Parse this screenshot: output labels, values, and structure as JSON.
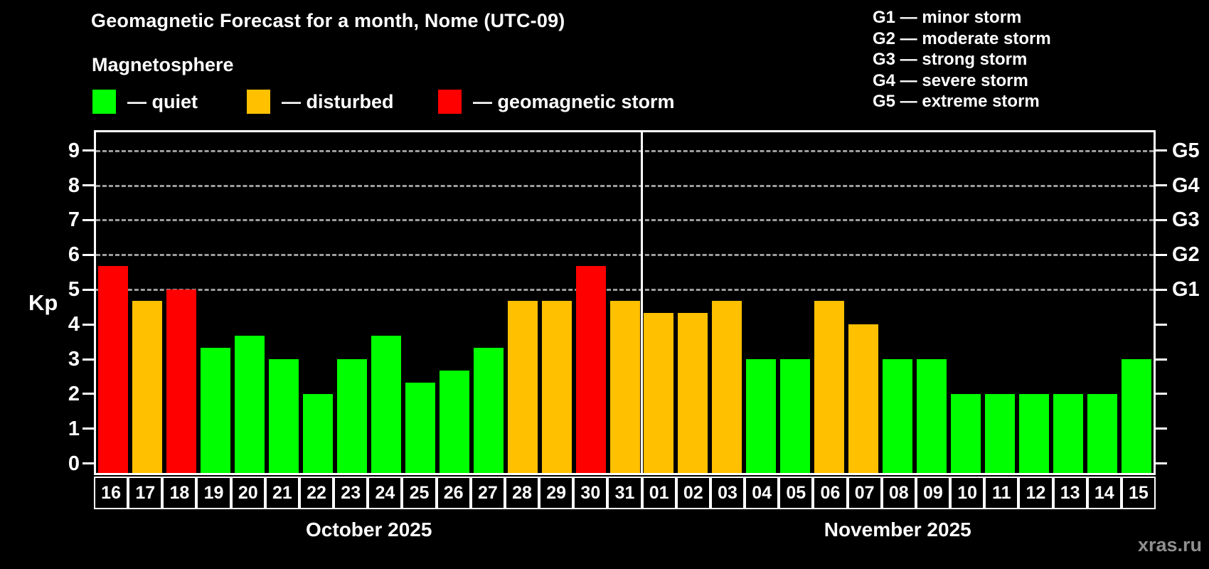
{
  "chart_data": {
    "type": "bar",
    "title": "Geomagnetic Forecast for a month, Nome (UTC-09)",
    "subtitle": "Magnetosphere",
    "ylabel": "Kp",
    "ylim": [
      0,
      9
    ],
    "y_ticks": [
      0,
      1,
      2,
      3,
      4,
      5,
      6,
      7,
      8,
      9
    ],
    "gridlines_at": [
      5,
      6,
      7,
      8,
      9
    ],
    "grid": "dashed horizontal at Kp 5-9",
    "legend_position": "top-left",
    "legend": [
      {
        "label": "— quiet",
        "status": "quiet",
        "color": "#00ff00"
      },
      {
        "label": "— disturbed",
        "status": "disturbed",
        "color": "#ffc000"
      },
      {
        "label": "— geomagnetic storm",
        "status": "storm",
        "color": "#ff0000"
      }
    ],
    "g_scale": [
      "G1 — minor storm",
      "G2 — moderate storm",
      "G3 — strong storm",
      "G4 — severe storm",
      "G5 — extreme storm"
    ],
    "right_axis_labels": [
      {
        "kp": 5,
        "label": "G1"
      },
      {
        "kp": 6,
        "label": "G2"
      },
      {
        "kp": 7,
        "label": "G3"
      },
      {
        "kp": 8,
        "label": "G4"
      },
      {
        "kp": 9,
        "label": "G5"
      }
    ],
    "status_colors": {
      "quiet": "#00ff00",
      "disturbed": "#ffc000",
      "storm": "#ff0000"
    },
    "months": [
      {
        "label": "October 2025",
        "bars": [
          {
            "day": "16",
            "kp": 5.67,
            "status": "storm"
          },
          {
            "day": "17",
            "kp": 4.67,
            "status": "disturbed"
          },
          {
            "day": "18",
            "kp": 5.0,
            "status": "storm"
          },
          {
            "day": "19",
            "kp": 3.33,
            "status": "quiet"
          },
          {
            "day": "20",
            "kp": 3.67,
            "status": "quiet"
          },
          {
            "day": "21",
            "kp": 3.0,
            "status": "quiet"
          },
          {
            "day": "22",
            "kp": 2.0,
            "status": "quiet"
          },
          {
            "day": "23",
            "kp": 3.0,
            "status": "quiet"
          },
          {
            "day": "24",
            "kp": 3.67,
            "status": "quiet"
          },
          {
            "day": "25",
            "kp": 2.33,
            "status": "quiet"
          },
          {
            "day": "26",
            "kp": 2.67,
            "status": "quiet"
          },
          {
            "day": "27",
            "kp": 3.33,
            "status": "quiet"
          },
          {
            "day": "28",
            "kp": 4.67,
            "status": "disturbed"
          },
          {
            "day": "29",
            "kp": 4.67,
            "status": "disturbed"
          },
          {
            "day": "30",
            "kp": 5.67,
            "status": "storm"
          },
          {
            "day": "31",
            "kp": 4.67,
            "status": "disturbed"
          }
        ]
      },
      {
        "label": "November 2025",
        "bars": [
          {
            "day": "01",
            "kp": 4.33,
            "status": "disturbed"
          },
          {
            "day": "02",
            "kp": 4.33,
            "status": "disturbed"
          },
          {
            "day": "03",
            "kp": 4.67,
            "status": "disturbed"
          },
          {
            "day": "04",
            "kp": 3.0,
            "status": "quiet"
          },
          {
            "day": "05",
            "kp": 3.0,
            "status": "quiet"
          },
          {
            "day": "06",
            "kp": 4.67,
            "status": "disturbed"
          },
          {
            "day": "07",
            "kp": 4.0,
            "status": "disturbed"
          },
          {
            "day": "08",
            "kp": 3.0,
            "status": "quiet"
          },
          {
            "day": "09",
            "kp": 3.0,
            "status": "quiet"
          },
          {
            "day": "10",
            "kp": 2.0,
            "status": "quiet"
          },
          {
            "day": "11",
            "kp": 2.0,
            "status": "quiet"
          },
          {
            "day": "12",
            "kp": 2.0,
            "status": "quiet"
          },
          {
            "day": "13",
            "kp": 2.0,
            "status": "quiet"
          },
          {
            "day": "14",
            "kp": 2.0,
            "status": "quiet"
          },
          {
            "day": "15",
            "kp": 3.0,
            "status": "quiet"
          }
        ]
      }
    ]
  },
  "watermark": "xras.ru"
}
